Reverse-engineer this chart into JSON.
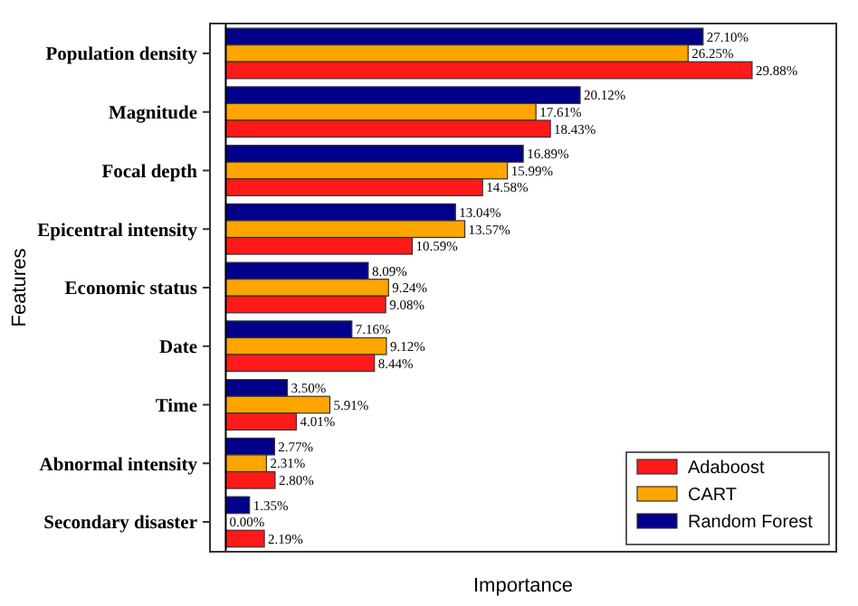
{
  "chart_data": {
    "type": "bar",
    "orientation": "horizontal",
    "xlabel": "Importance",
    "ylabel": "Features",
    "categories": [
      "Population density",
      "Magnitude",
      "Focal depth",
      "Epicentral intensity",
      "Economic status",
      "Date",
      "Time",
      "Abnormal intensity",
      "Secondary disaster"
    ],
    "series": [
      {
        "name": "Random Forest",
        "color": "#00008b",
        "values": [
          27.1,
          20.12,
          16.89,
          13.04,
          8.09,
          7.16,
          3.5,
          2.77,
          1.35
        ],
        "value_labels": [
          "27.10%",
          "20.12%",
          "16.89%",
          "13.04%",
          "8.09%",
          "7.16%",
          "3.50%",
          "2.77%",
          "1.35%"
        ]
      },
      {
        "name": "CART",
        "color": "#ffa500",
        "values": [
          26.25,
          17.61,
          15.99,
          13.57,
          9.24,
          9.12,
          5.91,
          2.31,
          0.0
        ],
        "value_labels": [
          "26.25%",
          "17.61%",
          "15.99%",
          "13.57%",
          "9.24%",
          "9.12%",
          "5.91%",
          "2.31%",
          "0.00%"
        ]
      },
      {
        "name": "Adaboost",
        "color": "#ff1a1a",
        "values": [
          29.88,
          18.43,
          14.58,
          10.59,
          9.08,
          8.44,
          4.01,
          2.8,
          2.19
        ],
        "value_labels": [
          "29.88%",
          "18.43%",
          "14.58%",
          "10.59%",
          "9.08%",
          "8.44%",
          "4.01%",
          "2.80%",
          "2.19%"
        ]
      }
    ],
    "legend": "bottom right"
  }
}
